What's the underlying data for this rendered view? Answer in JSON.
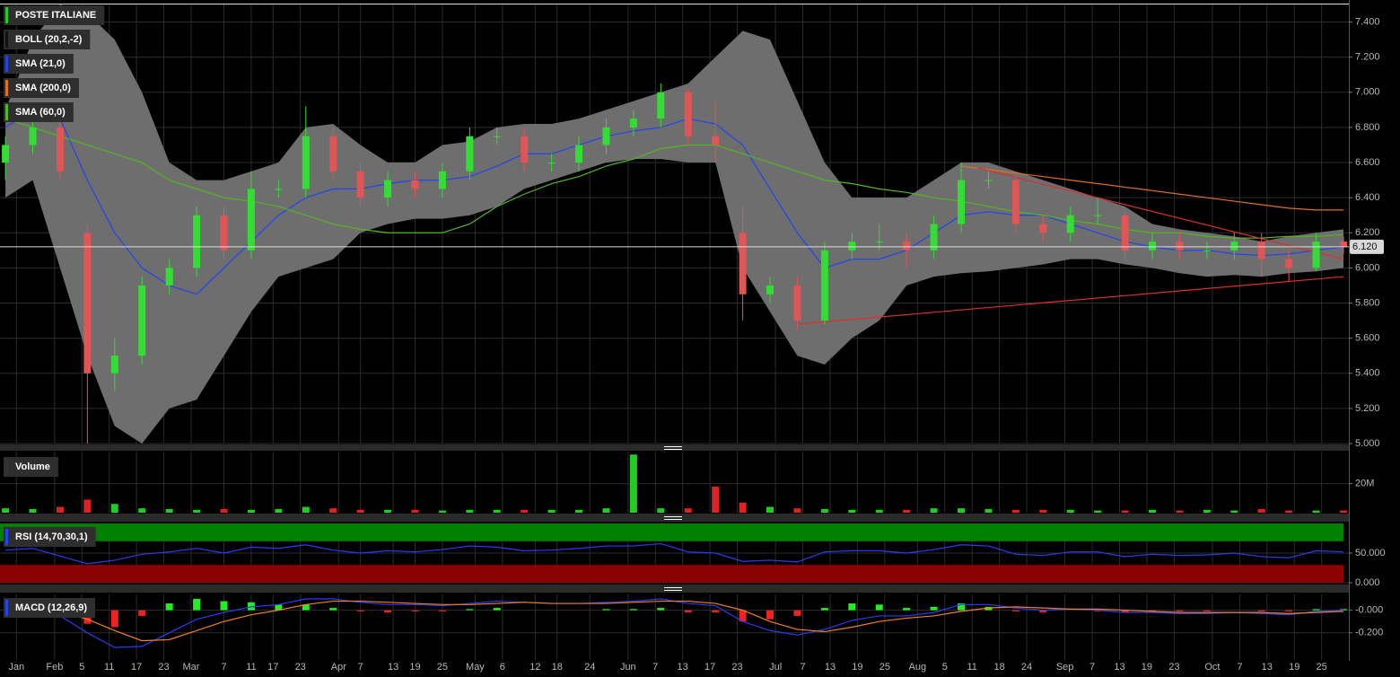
{
  "chart_data": [
    {
      "type": "candlestick",
      "title": "POSTE ITALIANE",
      "title_color": "#22cc22",
      "x": [
        0,
        5,
        10,
        15,
        20,
        25,
        30,
        35,
        40,
        45,
        50,
        55,
        60,
        65,
        70,
        75,
        80,
        85,
        90,
        95,
        100,
        105,
        110,
        115,
        120,
        125,
        130,
        135,
        140,
        145,
        150,
        155,
        160,
        165,
        170,
        175,
        180,
        185,
        190,
        195,
        200,
        205,
        210,
        215,
        220,
        225,
        230,
        235,
        240,
        245
      ],
      "open": [
        6.6,
        6.7,
        6.8,
        6.2,
        5.4,
        5.5,
        5.9,
        6.0,
        6.3,
        6.1,
        6.45,
        6.45,
        6.75,
        6.55,
        6.4,
        6.5,
        6.45,
        6.55,
        6.75,
        6.75,
        6.6,
        6.6,
        6.7,
        6.8,
        6.85,
        7.0,
        6.75,
        6.2,
        5.85,
        5.9,
        5.7,
        6.1,
        6.15,
        6.15,
        6.1,
        6.25,
        6.5,
        6.5,
        6.25,
        6.2,
        6.3,
        6.3,
        6.1,
        6.15,
        6.1,
        6.1,
        6.15,
        6.05,
        6.0,
        6.15
      ],
      "high": [
        6.75,
        6.85,
        6.85,
        6.25,
        5.6,
        5.95,
        6.05,
        6.35,
        6.35,
        6.55,
        6.5,
        6.92,
        6.8,
        6.6,
        6.55,
        6.55,
        6.6,
        6.8,
        6.8,
        6.8,
        6.65,
        6.75,
        6.85,
        6.9,
        7.05,
        7.02,
        6.95,
        6.35,
        5.95,
        5.95,
        6.15,
        6.2,
        6.25,
        6.2,
        6.3,
        6.6,
        6.55,
        6.52,
        6.3,
        6.35,
        6.4,
        6.32,
        6.2,
        6.2,
        6.15,
        6.2,
        6.2,
        6.1,
        6.2,
        6.18
      ],
      "low": [
        6.5,
        6.65,
        6.5,
        5.0,
        5.3,
        5.45,
        5.85,
        5.95,
        6.05,
        6.05,
        6.4,
        6.4,
        6.5,
        6.35,
        6.35,
        6.4,
        6.4,
        6.5,
        6.7,
        6.55,
        6.55,
        6.55,
        6.65,
        6.75,
        6.8,
        6.7,
        6.6,
        5.7,
        5.8,
        5.65,
        5.68,
        6.05,
        6.1,
        6.0,
        6.05,
        6.2,
        6.45,
        6.2,
        6.15,
        6.15,
        6.25,
        6.05,
        6.05,
        6.05,
        6.05,
        6.05,
        5.95,
        5.92,
        5.98,
        6.08
      ],
      "close": [
        6.7,
        6.8,
        6.55,
        5.4,
        5.5,
        5.9,
        6.0,
        6.3,
        6.1,
        6.45,
        6.45,
        6.75,
        6.55,
        6.4,
        6.5,
        6.45,
        6.55,
        6.75,
        6.75,
        6.6,
        6.6,
        6.7,
        6.8,
        6.85,
        7.0,
        6.75,
        6.7,
        5.85,
        5.9,
        5.7,
        6.1,
        6.15,
        6.15,
        6.1,
        6.25,
        6.5,
        6.5,
        6.25,
        6.2,
        6.3,
        6.3,
        6.1,
        6.15,
        6.1,
        6.1,
        6.15,
        6.05,
        6.0,
        6.15,
        6.12
      ],
      "up_color": "#33dd33",
      "down_color": "#e05555",
      "bands": {
        "name": "BOLL (20,2,-2)",
        "color": "#6e6e6e",
        "legend_color": "#111111",
        "upper": [
          6.9,
          7.3,
          7.5,
          7.45,
          7.3,
          7.0,
          6.6,
          6.5,
          6.5,
          6.55,
          6.6,
          6.8,
          6.82,
          6.7,
          6.6,
          6.6,
          6.7,
          6.72,
          6.8,
          6.82,
          6.82,
          6.85,
          6.9,
          6.95,
          7.0,
          7.05,
          7.2,
          7.35,
          7.3,
          6.95,
          6.6,
          6.4,
          6.4,
          6.4,
          6.5,
          6.6,
          6.6,
          6.55,
          6.5,
          6.45,
          6.4,
          6.35,
          6.25,
          6.22,
          6.2,
          6.18,
          6.15,
          6.18,
          6.2,
          6.22
        ],
        "lower": [
          6.4,
          6.5,
          6.0,
          5.5,
          5.1,
          5.0,
          5.2,
          5.25,
          5.5,
          5.75,
          5.95,
          6.0,
          6.05,
          6.2,
          6.25,
          6.28,
          6.28,
          6.3,
          6.35,
          6.45,
          6.5,
          6.55,
          6.6,
          6.62,
          6.62,
          6.6,
          6.6,
          6.0,
          5.75,
          5.5,
          5.45,
          5.6,
          5.7,
          5.9,
          5.95,
          5.97,
          5.98,
          6.0,
          6.02,
          6.05,
          6.05,
          6.02,
          6.0,
          5.97,
          5.95,
          5.96,
          5.95,
          5.97,
          5.98,
          6.0
        ]
      },
      "series": [
        {
          "name": "SMA (21,0)",
          "color": "#2244ee",
          "values": [
            6.8,
            6.9,
            6.85,
            6.5,
            6.2,
            6.0,
            5.9,
            5.85,
            6.0,
            6.15,
            6.3,
            6.4,
            6.45,
            6.45,
            6.48,
            6.5,
            6.5,
            6.52,
            6.58,
            6.65,
            6.65,
            6.7,
            6.75,
            6.78,
            6.8,
            6.85,
            6.82,
            6.7,
            6.45,
            6.2,
            6.0,
            6.05,
            6.05,
            6.1,
            6.2,
            6.3,
            6.32,
            6.3,
            6.3,
            6.25,
            6.2,
            6.15,
            6.12,
            6.1,
            6.1,
            6.08,
            6.07,
            6.08,
            6.1,
            6.12
          ]
        },
        {
          "name": "SMA (200,0)",
          "color": "#e07020",
          "values": [
            null,
            null,
            null,
            null,
            null,
            null,
            null,
            null,
            null,
            null,
            null,
            null,
            null,
            null,
            null,
            null,
            null,
            null,
            null,
            null,
            null,
            null,
            null,
            null,
            null,
            null,
            null,
            null,
            null,
            null,
            null,
            null,
            null,
            null,
            null,
            6.58,
            6.56,
            6.54,
            6.52,
            6.5,
            6.48,
            6.46,
            6.44,
            6.42,
            6.4,
            6.38,
            6.36,
            6.34,
            6.33,
            6.33
          ]
        },
        {
          "name": "SMA (60,0)",
          "color": "#55b522",
          "values": [
            6.85,
            6.8,
            6.75,
            6.7,
            6.65,
            6.6,
            6.5,
            6.45,
            6.4,
            6.38,
            6.35,
            6.3,
            6.25,
            6.22,
            6.2,
            6.2,
            6.2,
            6.25,
            6.35,
            6.42,
            6.48,
            6.52,
            6.58,
            6.62,
            6.68,
            6.7,
            6.7,
            6.65,
            6.6,
            6.55,
            6.5,
            6.48,
            6.45,
            6.43,
            6.4,
            6.38,
            6.35,
            6.32,
            6.3,
            6.27,
            6.25,
            6.22,
            6.2,
            6.2,
            6.18,
            6.17,
            6.17,
            6.18,
            6.18,
            6.19
          ]
        }
      ],
      "trendlines": [
        {
          "color": "#d83030",
          "x": [
            145,
            245
          ],
          "y": [
            5.68,
            5.95
          ]
        },
        {
          "color": "#d83030",
          "x": [
            178,
            245
          ],
          "y": [
            6.57,
            6.05
          ]
        }
      ],
      "last_price": {
        "value": 6.12,
        "label": "6.120"
      },
      "xlim": [
        -1,
        245
      ],
      "ylim": [
        5.0,
        7.5
      ],
      "grid": true,
      "yticks": [
        {
          "value": 5.0,
          "label": "5.000"
        },
        {
          "value": 5.2,
          "label": "5.200"
        },
        {
          "value": 5.4,
          "label": "5.400"
        },
        {
          "value": 5.6,
          "label": "5.600"
        },
        {
          "value": 5.8,
          "label": "5.800"
        },
        {
          "value": 6.0,
          "label": "6.000"
        },
        {
          "value": 6.2,
          "label": "6.200"
        },
        {
          "value": 6.4,
          "label": "6.400"
        },
        {
          "value": 6.6,
          "label": "6.600"
        },
        {
          "value": 6.8,
          "label": "6.800"
        },
        {
          "value": 7.0,
          "label": "7.000"
        },
        {
          "value": 7.2,
          "label": "7.200"
        },
        {
          "value": 7.4,
          "label": "7.400"
        }
      ],
      "xticks": [
        {
          "value": 2,
          "label": "Jan"
        },
        {
          "value": 9,
          "label": "Feb"
        },
        {
          "value": 14,
          "label": "5"
        },
        {
          "value": 19,
          "label": "11"
        },
        {
          "value": 24,
          "label": "17"
        },
        {
          "value": 29,
          "label": "23"
        },
        {
          "value": 34,
          "label": "Mar"
        },
        {
          "value": 40,
          "label": "7"
        },
        {
          "value": 45,
          "label": "11"
        },
        {
          "value": 49,
          "label": "17"
        },
        {
          "value": 54,
          "label": "23"
        },
        {
          "value": 61,
          "label": "Apr"
        },
        {
          "value": 65,
          "label": "7"
        },
        {
          "value": 71,
          "label": "13"
        },
        {
          "value": 75,
          "label": "19"
        },
        {
          "value": 80,
          "label": "25"
        },
        {
          "value": 86,
          "label": "May"
        },
        {
          "value": 91,
          "label": "6"
        },
        {
          "value": 97,
          "label": "12"
        },
        {
          "value": 101,
          "label": "18"
        },
        {
          "value": 107,
          "label": "24"
        },
        {
          "value": 114,
          "label": "Jun"
        },
        {
          "value": 119,
          "label": "7"
        },
        {
          "value": 124,
          "label": "13"
        },
        {
          "value": 129,
          "label": "17"
        },
        {
          "value": 134,
          "label": "23"
        },
        {
          "value": 141,
          "label": "Jul"
        },
        {
          "value": 146,
          "label": "7"
        },
        {
          "value": 151,
          "label": "13"
        },
        {
          "value": 156,
          "label": "19"
        },
        {
          "value": 161,
          "label": "25"
        },
        {
          "value": 167,
          "label": "Aug"
        },
        {
          "value": 172,
          "label": "5"
        },
        {
          "value": 177,
          "label": "11"
        },
        {
          "value": 182,
          "label": "18"
        },
        {
          "value": 187,
          "label": "24"
        },
        {
          "value": 194,
          "label": "Sep"
        },
        {
          "value": 199,
          "label": "7"
        },
        {
          "value": 204,
          "label": "13"
        },
        {
          "value": 209,
          "label": "19"
        },
        {
          "value": 214,
          "label": "23"
        },
        {
          "value": 221,
          "label": "Oct"
        },
        {
          "value": 226,
          "label": "7"
        },
        {
          "value": 231,
          "label": "13"
        },
        {
          "value": 236,
          "label": "19"
        },
        {
          "value": 241,
          "label": "25"
        }
      ]
    },
    {
      "type": "bar",
      "title": "Volume",
      "title_color": "#333333",
      "values": [
        3000000,
        2500000,
        4000000,
        9000000,
        6000000,
        3000000,
        2500000,
        2000000,
        2500000,
        2000000,
        2500000,
        4000000,
        3000000,
        2000000,
        2000000,
        2000000,
        1500000,
        2000000,
        2000000,
        2000000,
        2000000,
        2000000,
        3000000,
        40000000,
        3000000,
        3000000,
        18000000,
        7000000,
        4000000,
        3000000,
        2500000,
        2000000,
        2000000,
        2000000,
        3000000,
        3000000,
        2500000,
        2000000,
        2000000,
        2000000,
        1500000,
        1500000,
        2000000,
        1500000,
        2000000,
        1500000,
        2500000,
        1500000,
        1500000,
        1500000
      ],
      "up_color": "#22cc22",
      "down_color": "#dd2222",
      "ylim": [
        0,
        42000000
      ],
      "yticks": [
        {
          "value": 20000000,
          "label": "20M"
        }
      ]
    },
    {
      "type": "line",
      "title": "RSI (14,70,30,1)",
      "title_color": "#2244ee",
      "color": "#2a3cf0",
      "values": [
        55,
        58,
        45,
        32,
        38,
        48,
        52,
        58,
        50,
        60,
        58,
        64,
        55,
        50,
        54,
        52,
        56,
        62,
        60,
        54,
        55,
        58,
        62,
        62,
        66,
        52,
        50,
        36,
        38,
        35,
        52,
        54,
        54,
        50,
        56,
        64,
        62,
        48,
        46,
        52,
        52,
        44,
        48,
        46,
        47,
        50,
        44,
        42,
        54,
        52
      ],
      "bands": [
        {
          "from": 70,
          "to": 100,
          "color": "#008000"
        },
        {
          "from": 0,
          "to": 30,
          "color": "#8b0000"
        }
      ],
      "ylim": [
        0,
        100
      ],
      "yticks": [
        {
          "value": 0,
          "label": "0.000"
        },
        {
          "value": 50,
          "label": "50.000"
        }
      ]
    },
    {
      "type": "macd",
      "title": "MACD (12,26,9)",
      "title_color": "#2244ee",
      "series": [
        {
          "color": "#2a3cf0",
          "values": [
            -0.02,
            0.02,
            -0.05,
            -0.2,
            -0.33,
            -0.32,
            -0.2,
            -0.08,
            -0.02,
            0.03,
            0.05,
            0.1,
            0.1,
            0.07,
            0.05,
            0.05,
            0.04,
            0.06,
            0.08,
            0.07,
            0.06,
            0.06,
            0.07,
            0.08,
            0.1,
            0.06,
            0.04,
            -0.1,
            -0.18,
            -0.22,
            -0.17,
            -0.09,
            -0.05,
            -0.05,
            -0.02,
            0.05,
            0.05,
            0.02,
            0.0,
            0.01,
            0.0,
            -0.02,
            -0.02,
            -0.03,
            -0.03,
            -0.02,
            -0.03,
            -0.04,
            -0.01,
            0.0
          ]
        },
        {
          "color": "#f08020",
          "values": [
            -0.02,
            0.0,
            -0.01,
            -0.08,
            -0.18,
            -0.27,
            -0.26,
            -0.18,
            -0.1,
            -0.04,
            0.0,
            0.05,
            0.08,
            0.08,
            0.07,
            0.06,
            0.05,
            0.05,
            0.06,
            0.07,
            0.06,
            0.06,
            0.06,
            0.07,
            0.08,
            0.08,
            0.06,
            0.0,
            -0.1,
            -0.17,
            -0.19,
            -0.15,
            -0.1,
            -0.07,
            -0.05,
            -0.01,
            0.02,
            0.03,
            0.02,
            0.01,
            0.01,
            0.0,
            -0.01,
            -0.02,
            -0.02,
            -0.02,
            -0.02,
            -0.03,
            -0.02,
            -0.01
          ]
        }
      ],
      "histogram": [
        0,
        0.02,
        -0.04,
        -0.12,
        -0.15,
        -0.05,
        0.06,
        0.1,
        0.08,
        0.07,
        0.05,
        0.05,
        0.02,
        -0.01,
        -0.02,
        -0.01,
        -0.01,
        0.01,
        0.02,
        0,
        0,
        0,
        0.01,
        0.01,
        0.02,
        -0.02,
        -0.02,
        -0.1,
        -0.08,
        -0.05,
        0.02,
        0.06,
        0.05,
        0.02,
        0.03,
        0.06,
        0.03,
        -0.01,
        -0.02,
        0,
        -0.01,
        -0.02,
        -0.01,
        -0.01,
        -0.01,
        0,
        -0.01,
        -0.01,
        0.01,
        0.01
      ],
      "up_color": "#22ee22",
      "down_color": "#ee2222",
      "ylim": [
        -0.44,
        0.14
      ],
      "yticks": [
        {
          "value": 0,
          "label": "-0.000"
        },
        {
          "value": -0.2,
          "label": "-0.200"
        }
      ]
    }
  ]
}
